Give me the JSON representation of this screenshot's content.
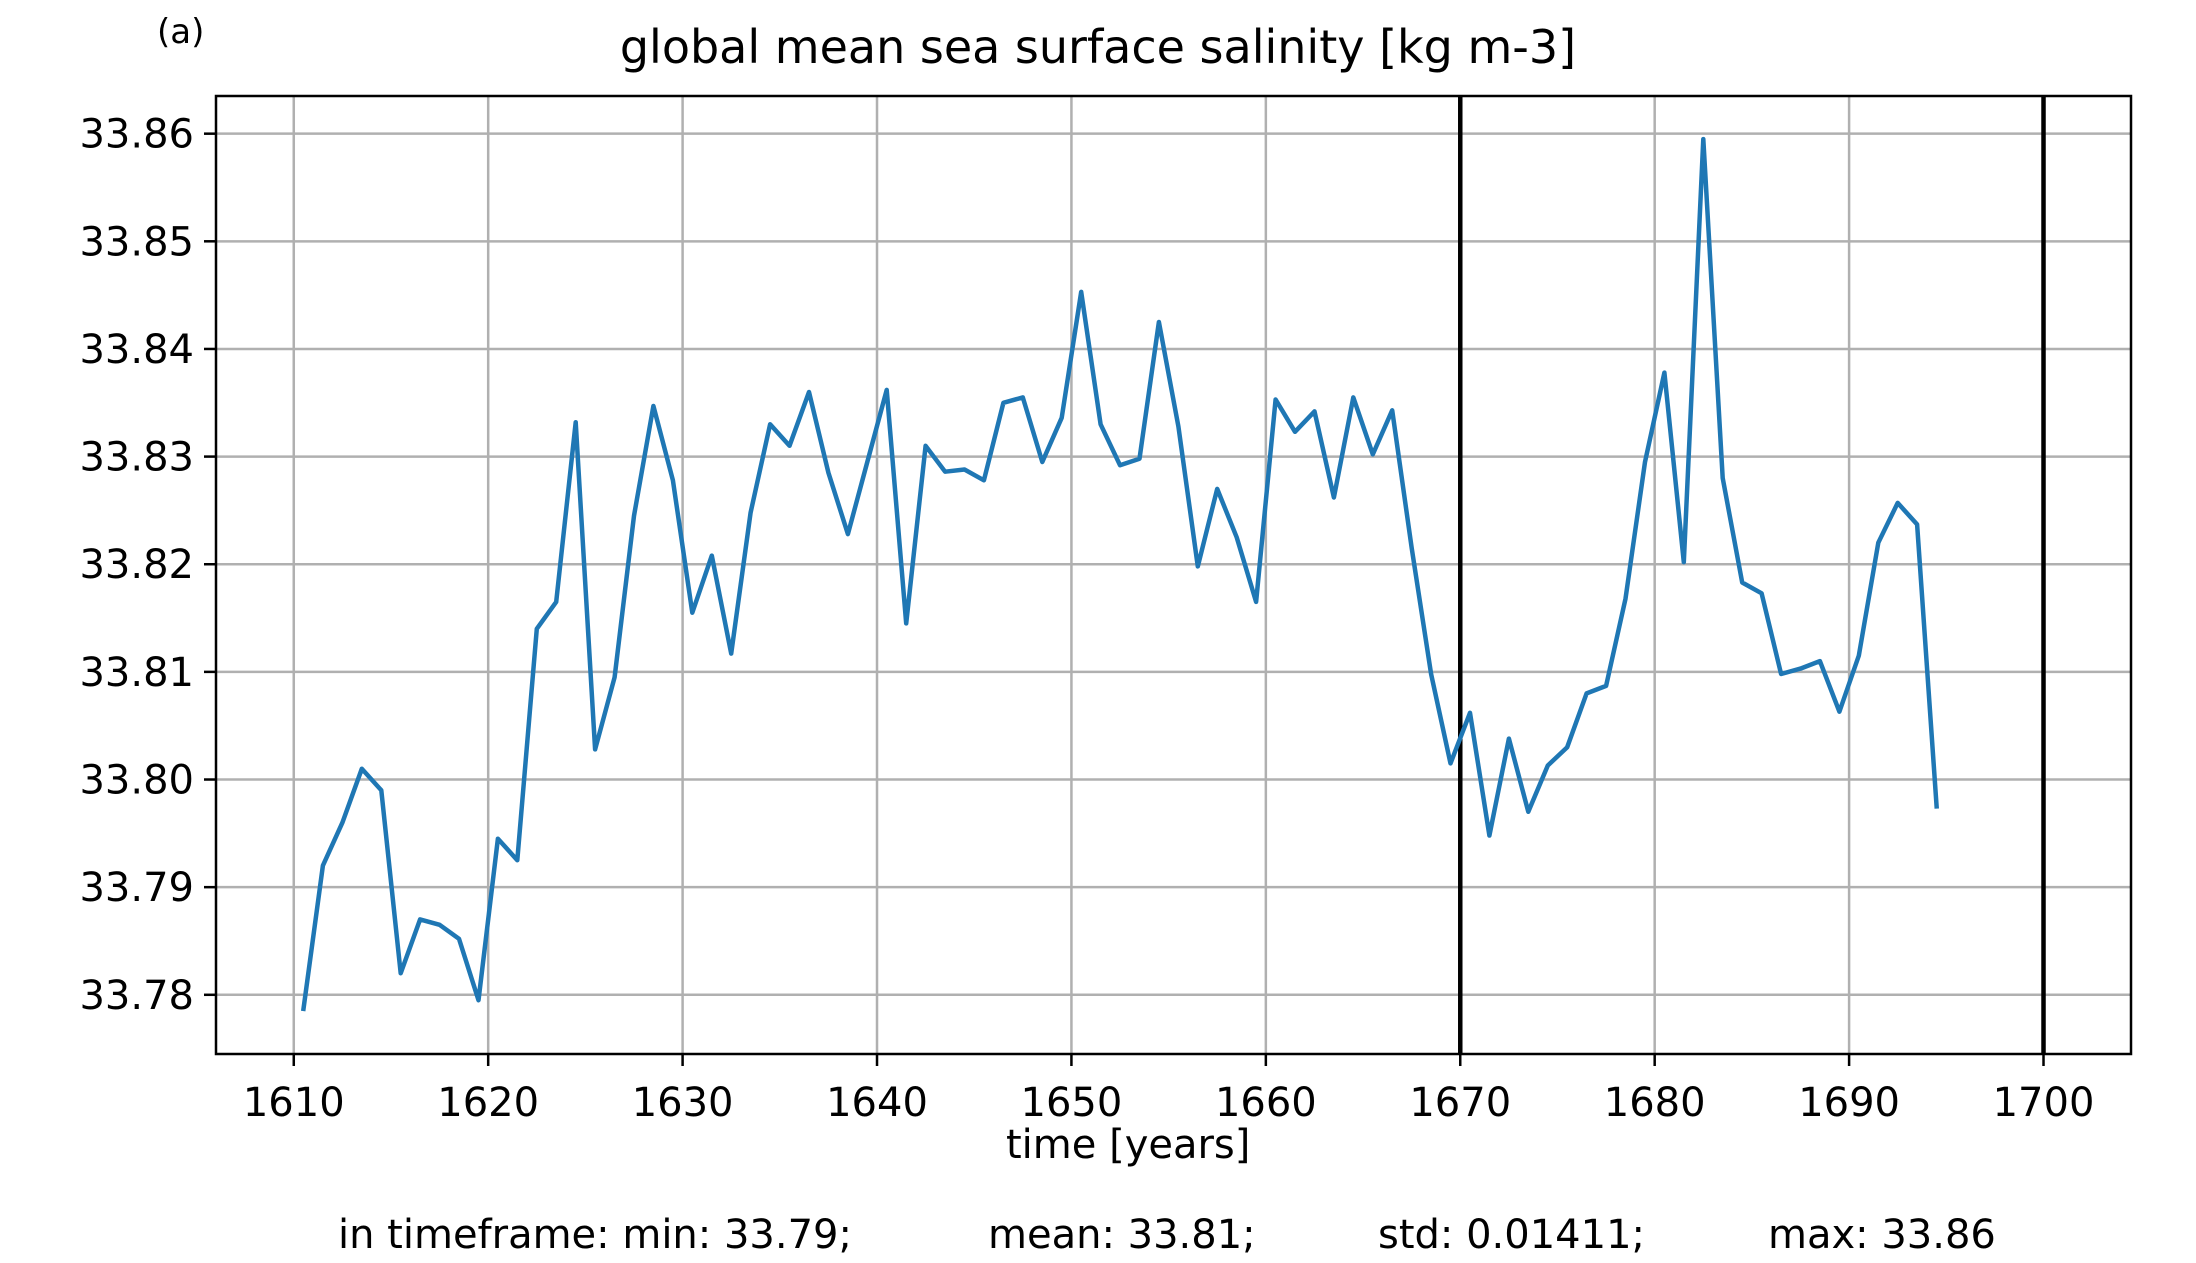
{
  "panel_label": "(a)",
  "stats": {
    "min": "in timeframe: min: 33.79;",
    "mean": "mean: 33.81;",
    "std": "std: 0.01411;",
    "max": "max: 33.86"
  },
  "colors": {
    "line": "#1f77b4",
    "grid": "#b0b0b0",
    "vline": "#000000"
  },
  "chart_data": {
    "type": "line",
    "title": "global mean sea surface salinity [kg m-3]",
    "xlabel": "time [years]",
    "ylabel": "",
    "xlim": [
      1606,
      1704.5
    ],
    "ylim": [
      33.7745,
      33.8635
    ],
    "xticks": [
      1610,
      1620,
      1630,
      1640,
      1650,
      1660,
      1670,
      1680,
      1690,
      1700
    ],
    "yticks": [
      33.78,
      33.79,
      33.8,
      33.81,
      33.82,
      33.83,
      33.84,
      33.85,
      33.86
    ],
    "grid": true,
    "vertical_lines": [
      1670,
      1700
    ],
    "series": [
      {
        "x": [
          1610.5,
          1611.5,
          1612.5,
          1613.5,
          1614.5,
          1615.5,
          1616.5,
          1617.5,
          1618.5,
          1619.5,
          1620.5,
          1621.5,
          1622.5,
          1623.5,
          1624.5,
          1625.5,
          1626.5,
          1627.5,
          1628.5,
          1629.5,
          1630.5,
          1631.5,
          1632.5,
          1633.5,
          1634.5,
          1635.5,
          1636.5,
          1637.5,
          1638.5,
          1639.5,
          1640.5,
          1641.5,
          1642.5,
          1643.5,
          1644.5,
          1645.5,
          1646.5,
          1647.5,
          1648.5,
          1649.5,
          1650.5,
          1651.5,
          1652.5,
          1653.5,
          1654.5,
          1655.5,
          1656.5,
          1657.5,
          1658.5,
          1659.5,
          1660.5,
          1661.5,
          1662.5,
          1663.5,
          1664.5,
          1665.5,
          1666.5,
          1667.5,
          1668.5,
          1669.5,
          1670.5,
          1671.5,
          1672.5,
          1673.5,
          1674.5,
          1675.5,
          1676.5,
          1677.5,
          1678.5,
          1679.5,
          1680.5,
          1681.5,
          1682.5,
          1683.5,
          1684.5,
          1685.5,
          1686.5,
          1687.5,
          1688.5,
          1689.5,
          1690.5,
          1691.5,
          1692.5,
          1693.5,
          1694.5
        ],
        "y": [
          33.7787,
          33.792,
          33.796,
          33.801,
          33.799,
          33.782,
          33.787,
          33.7865,
          33.7852,
          33.7795,
          33.7945,
          33.7925,
          33.814,
          33.8165,
          33.8332,
          33.8028,
          33.8095,
          33.8245,
          33.8347,
          33.8278,
          33.8155,
          33.8208,
          33.8117,
          33.8248,
          33.833,
          33.831,
          33.836,
          33.8285,
          33.8228,
          33.8295,
          33.8362,
          33.8145,
          33.831,
          33.8286,
          33.8288,
          33.8278,
          33.835,
          33.8355,
          33.8295,
          33.8336,
          33.8453,
          33.833,
          33.8292,
          33.8298,
          33.8425,
          33.8328,
          33.8198,
          33.827,
          33.8225,
          33.8165,
          33.8353,
          33.8323,
          33.8342,
          33.8262,
          33.8355,
          33.8302,
          33.8343,
          33.8215,
          33.8098,
          33.8015,
          33.8062,
          33.7948,
          33.8038,
          33.797,
          33.8013,
          33.803,
          33.808,
          33.8087,
          33.8168,
          33.8295,
          33.8378,
          33.8202,
          33.8595,
          33.828,
          33.8183,
          33.8173,
          33.8098,
          33.8103,
          33.811,
          33.8063,
          33.8115,
          33.822,
          33.8257,
          33.8237,
          33.7975
        ]
      }
    ]
  }
}
